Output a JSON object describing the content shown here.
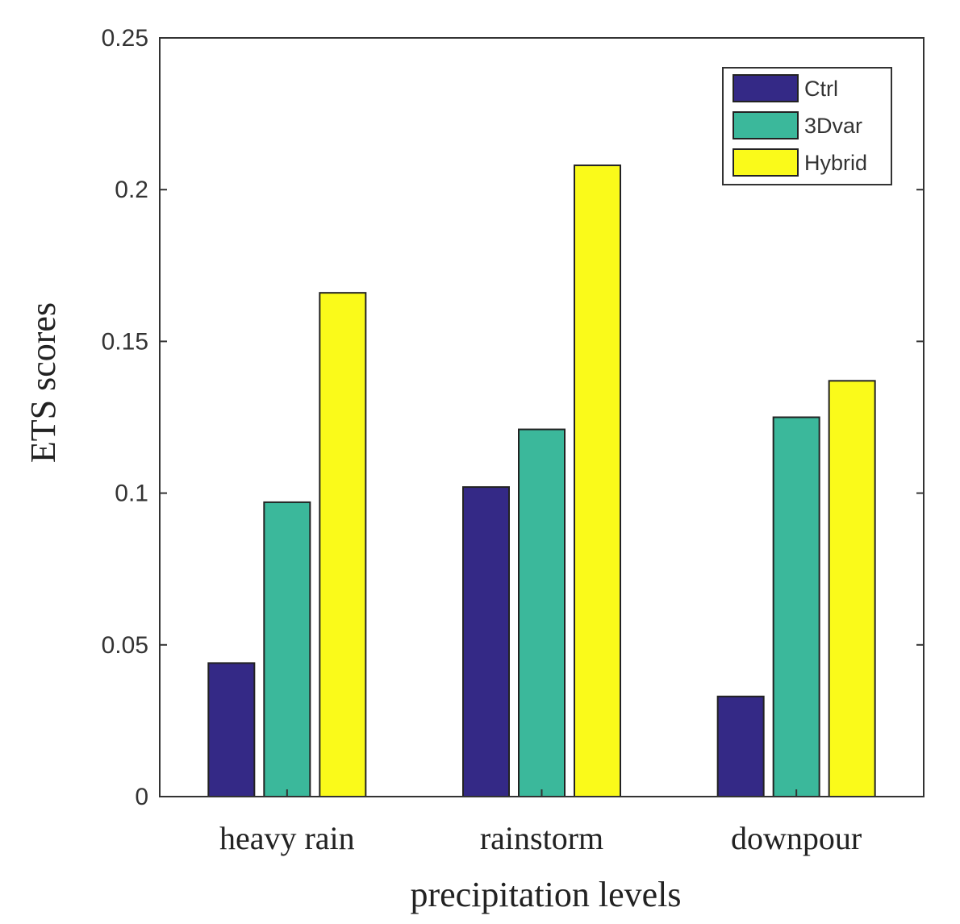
{
  "chart_data": {
    "type": "bar",
    "title": "",
    "xlabel": "precipitation levels",
    "ylabel": "ETS  scores",
    "categories": [
      "heavy rain",
      "rainstorm",
      "downpour"
    ],
    "series": [
      {
        "name": "Ctrl",
        "color": "#342986",
        "values": [
          0.044,
          0.102,
          0.033
        ]
      },
      {
        "name": "3Dvar",
        "color": "#3bb89b",
        "values": [
          0.097,
          0.121,
          0.125
        ]
      },
      {
        "name": "Hybrid",
        "color": "#fafa1a",
        "values": [
          0.166,
          0.208,
          0.137
        ]
      }
    ],
    "ylim": [
      0,
      0.25
    ],
    "yticks": [
      0,
      0.05,
      0.1,
      0.15,
      0.2,
      0.25
    ],
    "ytick_labels": [
      "0",
      "0.05",
      "0.1",
      "0.15",
      "0.2",
      "0.25"
    ],
    "grid": false,
    "legend_position": "top-right"
  }
}
